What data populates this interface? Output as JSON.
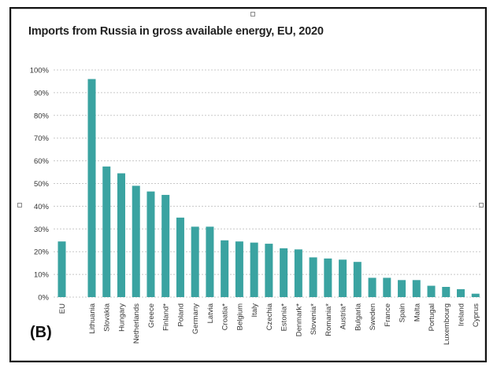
{
  "figure": {
    "panel_label": "(B)"
  },
  "chart_data": {
    "type": "bar",
    "title": "Imports from Russia in gross available energy, EU, 2020",
    "xlabel": "",
    "ylabel": "",
    "ylim": [
      0,
      100
    ],
    "yticks": [
      "0%",
      "10%",
      "20%",
      "30%",
      "40%",
      "50%",
      "60%",
      "70%",
      "80%",
      "90%",
      "100%"
    ],
    "grid": true,
    "bar_color": "#3aa3a1",
    "categories": [
      "EU",
      "Lithuania",
      "Slovakia",
      "Hungary",
      "Netherlands",
      "Greece",
      "Finland*",
      "Poland",
      "Germany",
      "Latvia",
      "Croatia*",
      "Belgium",
      "Italy",
      "Czechia",
      "Estonia*",
      "Denmark*",
      "Slovenia*",
      "Romania*",
      "Austria*",
      "Bulgaria",
      "Sweden",
      "France",
      "Spain",
      "Malta",
      "Portugal",
      "Luxembourg",
      "Ireland",
      "Cyprus"
    ],
    "values": [
      24.5,
      96,
      57.5,
      54.5,
      49,
      46.5,
      45,
      35,
      31,
      31,
      25,
      24.5,
      24,
      23.5,
      21.5,
      21,
      17.5,
      17,
      16.5,
      15.5,
      8.5,
      8.5,
      7.5,
      7.5,
      5,
      4.5,
      3.5,
      1.5
    ]
  }
}
